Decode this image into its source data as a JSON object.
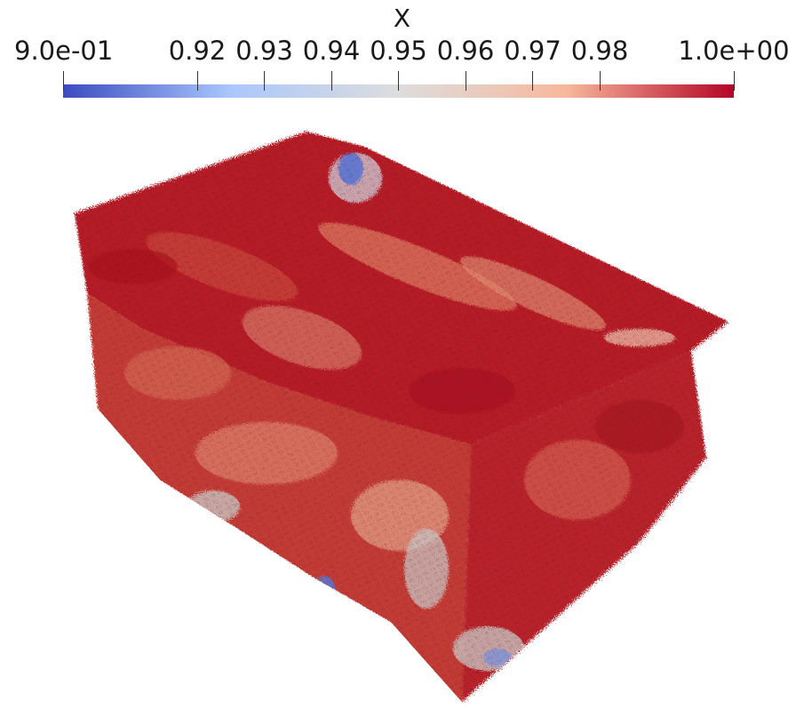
{
  "legend": {
    "title": "X",
    "ticks": [
      {
        "label": "9.0e-01",
        "value": 0.9
      },
      {
        "label": "0.92",
        "value": 0.92
      },
      {
        "label": "0.93",
        "value": 0.93
      },
      {
        "label": "0.94",
        "value": 0.94
      },
      {
        "label": "0.95",
        "value": 0.95
      },
      {
        "label": "0.96",
        "value": 0.96
      },
      {
        "label": "0.97",
        "value": 0.97
      },
      {
        "label": "0.98",
        "value": 0.98
      },
      {
        "label": "1.0e+00",
        "value": 1.0
      }
    ],
    "range": [
      0.9,
      1.0
    ],
    "colormap": [
      "#3b4cc0",
      "#aac7fd",
      "#dddddd",
      "#f7b89c",
      "#b40426"
    ]
  },
  "colors": {
    "deep_red": "#b01925",
    "mid_red": "#c8413a",
    "salmon": "#e0826a",
    "light_salmon": "#e8a98e",
    "grey": "#c8c4c2",
    "blue": "#5b78d6"
  }
}
